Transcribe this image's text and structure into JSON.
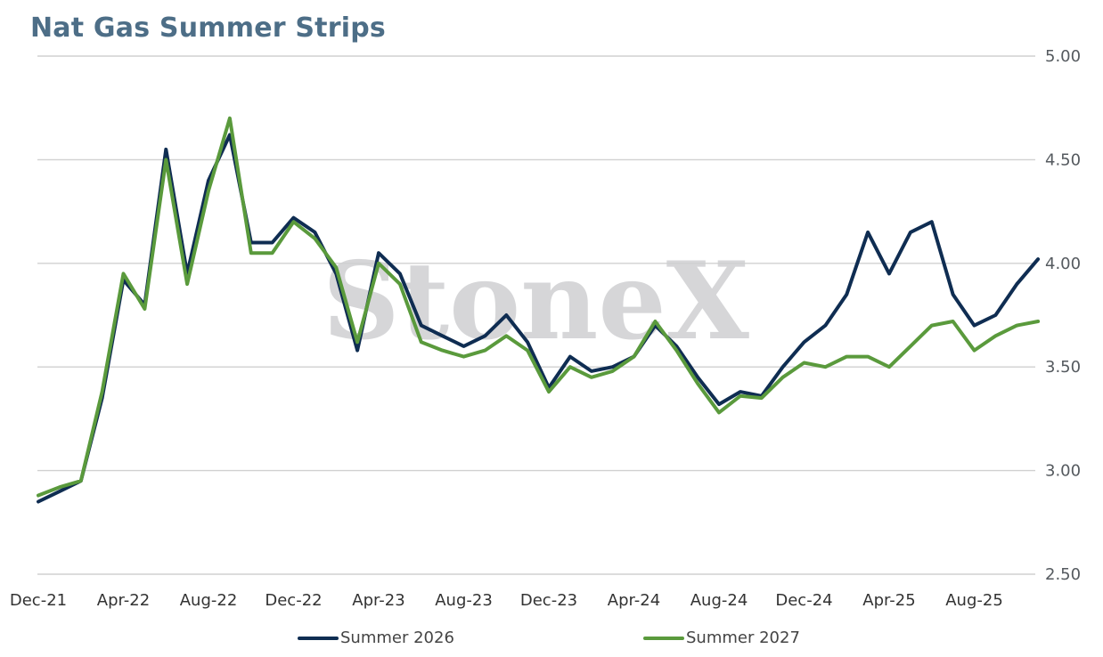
{
  "chart_data": {
    "type": "line",
    "title": "Nat Gas Summer Strips",
    "xlabel": "",
    "ylabel": "",
    "ylim": [
      2.5,
      5.0
    ],
    "yticks": [
      "2.50",
      "3.00",
      "3.50",
      "4.00",
      "4.50",
      "5.00"
    ],
    "x_tick_labels": [
      "Dec-21",
      "Apr-22",
      "Aug-22",
      "Dec-22",
      "Apr-23",
      "Aug-23",
      "Dec-23",
      "Apr-24",
      "Aug-24",
      "Dec-24",
      "Apr-25",
      "Aug-25"
    ],
    "grid": true,
    "legend_position": "bottom",
    "watermark": "StoneX",
    "series": [
      {
        "name": "Summer 2026",
        "color": "#0f2d52",
        "x": [
          "Dec-21",
          "Jan-22",
          "Feb-22",
          "Mar-22",
          "Apr-22",
          "May-22",
          "Jun-22",
          "Jul-22",
          "Aug-22",
          "Sep-22",
          "Oct-22",
          "Nov-22",
          "Dec-22",
          "Jan-23",
          "Feb-23",
          "Mar-23",
          "Apr-23",
          "May-23",
          "Jun-23",
          "Jul-23",
          "Aug-23",
          "Sep-23",
          "Oct-23",
          "Nov-23",
          "Dec-23",
          "Jan-24",
          "Feb-24",
          "Mar-24",
          "Apr-24",
          "May-24",
          "Jun-24",
          "Jul-24",
          "Aug-24",
          "Sep-24",
          "Oct-24",
          "Nov-24",
          "Dec-24",
          "Jan-25",
          "Feb-25",
          "Mar-25",
          "Apr-25",
          "May-25",
          "Jun-25",
          "Jul-25",
          "Aug-25",
          "Sep-25",
          "Oct-25",
          "Nov-25"
        ],
        "values": [
          2.85,
          2.9,
          2.95,
          3.35,
          3.92,
          3.8,
          4.55,
          3.95,
          4.4,
          4.62,
          4.1,
          4.1,
          4.22,
          4.15,
          3.95,
          3.58,
          4.05,
          3.95,
          3.7,
          3.65,
          3.6,
          3.65,
          3.75,
          3.62,
          3.4,
          3.55,
          3.48,
          3.5,
          3.55,
          3.7,
          3.6,
          3.45,
          3.32,
          3.38,
          3.36,
          3.5,
          3.62,
          3.7,
          3.85,
          4.15,
          3.95,
          4.15,
          4.2,
          3.85,
          3.7,
          3.75,
          3.9,
          4.02
        ]
      },
      {
        "name": "Summer 2027",
        "color": "#5a9a3c",
        "x": [
          "Dec-21",
          "Jan-22",
          "Feb-22",
          "Mar-22",
          "Apr-22",
          "May-22",
          "Jun-22",
          "Jul-22",
          "Aug-22",
          "Sep-22",
          "Oct-22",
          "Nov-22",
          "Dec-22",
          "Jan-23",
          "Feb-23",
          "Mar-23",
          "Apr-23",
          "May-23",
          "Jun-23",
          "Jul-23",
          "Aug-23",
          "Sep-23",
          "Oct-23",
          "Nov-23",
          "Dec-23",
          "Jan-24",
          "Feb-24",
          "Mar-24",
          "Apr-24",
          "May-24",
          "Jun-24",
          "Jul-24",
          "Aug-24",
          "Sep-24",
          "Oct-24",
          "Nov-24",
          "Dec-24",
          "Jan-25",
          "Feb-25",
          "Mar-25",
          "Apr-25",
          "May-25",
          "Jun-25",
          "Jul-25",
          "Aug-25",
          "Sep-25",
          "Oct-25",
          "Nov-25"
        ],
        "values": [
          2.88,
          2.92,
          2.95,
          3.38,
          3.95,
          3.78,
          4.5,
          3.9,
          4.35,
          4.7,
          4.05,
          4.05,
          4.2,
          4.12,
          3.98,
          3.62,
          4.0,
          3.9,
          3.62,
          3.58,
          3.55,
          3.58,
          3.65,
          3.58,
          3.38,
          3.5,
          3.45,
          3.48,
          3.55,
          3.72,
          3.58,
          3.42,
          3.28,
          3.36,
          3.35,
          3.45,
          3.52,
          3.5,
          3.55,
          3.55,
          3.5,
          3.6,
          3.7,
          3.72,
          3.58,
          3.65,
          3.7,
          3.72
        ]
      }
    ]
  }
}
